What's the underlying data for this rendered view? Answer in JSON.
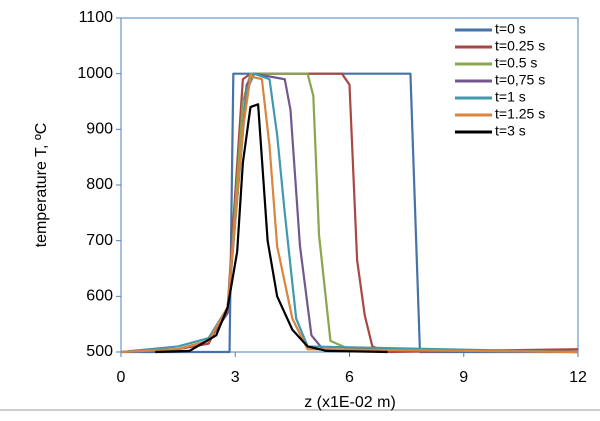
{
  "chart_data": {
    "type": "line",
    "xlabel": "z (x1E-02 m)",
    "ylabel": "temperature T, ºC",
    "xlim": [
      0,
      12
    ],
    "xticks": [
      0,
      3,
      6,
      9,
      12
    ],
    "ylim": [
      500,
      1100
    ],
    "yticks": [
      500,
      600,
      700,
      800,
      900,
      1000,
      1100
    ],
    "legend": "upper right",
    "series": [
      {
        "name": "t=0 s",
        "color": "#4572a7",
        "x": [
          0,
          2.85,
          2.95,
          7.6,
          7.85,
          12
        ],
        "values": [
          500,
          500,
          1000,
          1000,
          500,
          500
        ]
      },
      {
        "name": "t=0.25 s",
        "color": "#aa4643",
        "x": [
          0,
          1.5,
          2.3,
          2.8,
          3.2,
          3.4,
          5.8,
          6.0,
          6.2,
          6.4,
          6.6,
          7.0,
          12
        ],
        "values": [
          500,
          505,
          515,
          580,
          990,
          1000,
          1000,
          980,
          665,
          566,
          510,
          500,
          505
        ]
      },
      {
        "name": "t=0.5 s",
        "color": "#89a54e",
        "x": [
          0,
          1.5,
          2.3,
          2.8,
          3.2,
          3.4,
          4.9,
          5.05,
          5.2,
          5.5,
          6.0,
          12
        ],
        "values": [
          500,
          505,
          520,
          570,
          950,
          1000,
          1000,
          960,
          710,
          520,
          505,
          500
        ]
      },
      {
        "name": "t=0,75 s",
        "color": "#71588f",
        "x": [
          0,
          1.5,
          2.3,
          2.8,
          3.3,
          3.5,
          4.3,
          4.45,
          4.7,
          5.0,
          5.3,
          12
        ],
        "values": [
          500,
          505,
          520,
          570,
          980,
          1000,
          990,
          935,
          690,
          530,
          505,
          500
        ]
      },
      {
        "name": "t=1 s",
        "color": "#4198af",
        "x": [
          0,
          1.5,
          2.3,
          2.8,
          3.3,
          3.5,
          3.9,
          4.1,
          4.3,
          4.6,
          4.9,
          12
        ],
        "values": [
          500,
          510,
          525,
          580,
          970,
          1000,
          990,
          890,
          750,
          560,
          510,
          500
        ]
      },
      {
        "name": "t=1.25 s",
        "color": "#db843d",
        "x": [
          0,
          1.5,
          2.3,
          2.8,
          3.2,
          3.4,
          3.7,
          3.9,
          4.1,
          4.5,
          4.9,
          12
        ],
        "values": [
          500,
          505,
          520,
          580,
          900,
          995,
          990,
          870,
          690,
          560,
          505,
          500
        ]
      },
      {
        "name": "t=3 s",
        "color": "#000000",
        "x": [
          0.9,
          1.8,
          2.5,
          2.8,
          3.05,
          3.2,
          3.4,
          3.6,
          3.85,
          4.1,
          4.5,
          4.9,
          5.4,
          7.0
        ],
        "values": [
          500,
          502,
          530,
          580,
          680,
          840,
          940,
          945,
          700,
          600,
          540,
          510,
          502,
          500
        ]
      }
    ]
  }
}
